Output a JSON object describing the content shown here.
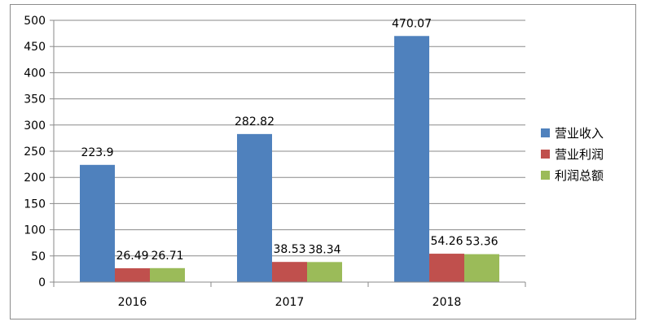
{
  "chart_data": {
    "type": "bar",
    "categories": [
      "2016",
      "2017",
      "2018"
    ],
    "series": [
      {
        "name": "营业收入",
        "values": [
          223.9,
          282.82,
          470.07
        ],
        "color": "#4F81BD"
      },
      {
        "name": "营业利润",
        "values": [
          26.49,
          38.53,
          54.26
        ],
        "color": "#C0504D"
      },
      {
        "name": "利润总额",
        "values": [
          26.71,
          38.34,
          53.36
        ],
        "color": "#9BBB59"
      }
    ],
    "value_labels": [
      [
        "223.9",
        "282.82",
        "470.07"
      ],
      [
        "26.49",
        "38.53",
        "54.26"
      ],
      [
        "26.71",
        "38.34",
        "53.36"
      ]
    ],
    "ylim": [
      0,
      500
    ],
    "yticks": [
      0,
      50,
      100,
      150,
      200,
      250,
      300,
      350,
      400,
      450,
      500
    ],
    "ytick_labels": [
      "0",
      "50",
      "100",
      "150",
      "200",
      "250",
      "300",
      "350",
      "400",
      "450",
      "500"
    ],
    "grid": true,
    "legend_position": "right"
  }
}
